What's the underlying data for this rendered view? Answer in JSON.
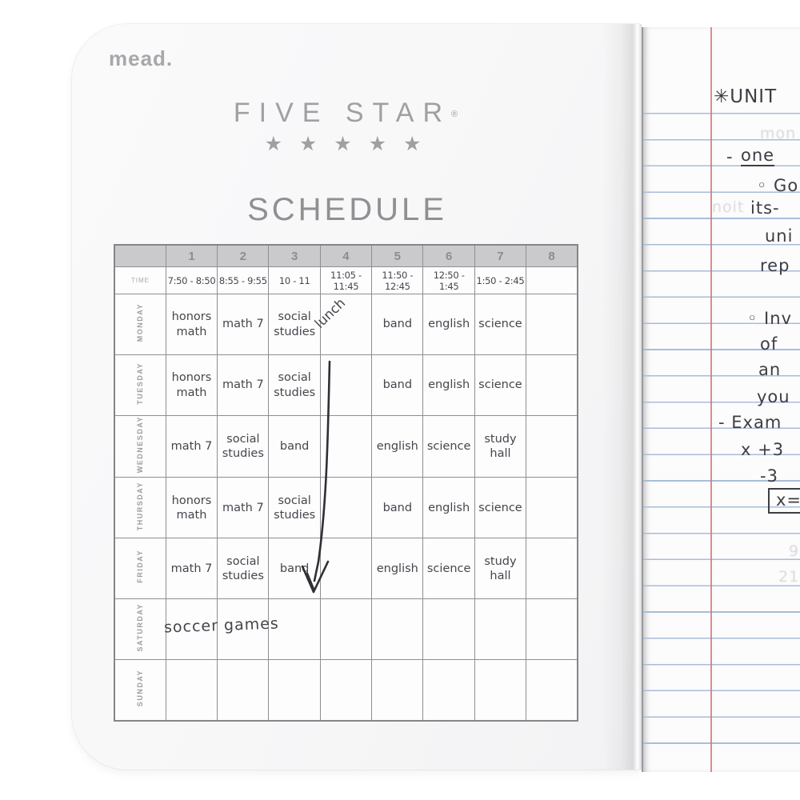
{
  "cover": {
    "brand": "mead.",
    "product": "FIVE STAR",
    "reg_mark": "®",
    "stars": "★ ★ ★ ★ ★",
    "title": "SCHEDULE"
  },
  "schedule_table": {
    "period_headers": [
      "1",
      "2",
      "3",
      "4",
      "5",
      "6",
      "7",
      "8"
    ],
    "time_label": "TIME",
    "times": [
      "7:50 - 8:50",
      "8:55 - 9:55",
      "10 - 11",
      "11:05 - 11:45",
      "11:50 - 12:45",
      "12:50 - 1:45",
      "1:50 - 2:45",
      ""
    ],
    "rows": [
      {
        "day": "MONDAY",
        "cells": [
          "honors math",
          "math 7",
          "social studies",
          "",
          "band",
          "english",
          "science",
          ""
        ]
      },
      {
        "day": "TUESDAY",
        "cells": [
          "honors math",
          "math 7",
          "social studies",
          "",
          "band",
          "english",
          "science",
          ""
        ]
      },
      {
        "day": "WEDNESDAY",
        "cells": [
          "math 7",
          "social studies",
          "band",
          "",
          "english",
          "science",
          "study hall",
          ""
        ]
      },
      {
        "day": "THURSDAY",
        "cells": [
          "honors math",
          "math 7",
          "social studies",
          "",
          "band",
          "english",
          "science",
          ""
        ]
      },
      {
        "day": "FRIDAY",
        "cells": [
          "math 7",
          "social studies",
          "band",
          "",
          "english",
          "science",
          "study hall",
          ""
        ]
      },
      {
        "day": "SATURDAY",
        "cells": [
          "",
          "",
          "",
          "",
          "",
          "",
          "",
          ""
        ]
      },
      {
        "day": "SUNDAY",
        "cells": [
          "",
          "",
          "",
          "",
          "",
          "",
          "",
          ""
        ]
      }
    ],
    "lunch_label": "lunch",
    "saturday_note": "soccer games",
    "annotation": "hand-drawn arrow down column 4 from Tuesday to Friday"
  },
  "notes_page": {
    "fragments": [
      {
        "text": "✳UNIT"
      },
      {
        "text": "-"
      },
      {
        "text": "one"
      },
      {
        "text": "◦ Go"
      },
      {
        "text": "its-"
      },
      {
        "text": "uni"
      },
      {
        "text": "rep"
      },
      {
        "text": "◦ Inv"
      },
      {
        "text": "of"
      },
      {
        "text": "an"
      },
      {
        "text": "you"
      },
      {
        "text": "- Exam"
      },
      {
        "text": "x +3"
      },
      {
        "text": "-3"
      },
      {
        "text": "x="
      }
    ],
    "ghost_fragments": [
      {
        "text": "mon"
      },
      {
        "text": "noit"
      },
      {
        "text": "9"
      },
      {
        "text": "21"
      }
    ]
  },
  "colors": {
    "cover_gray": "#f7f7f8",
    "paper_white": "#fcfcfd",
    "rule_blue": "#a8bdd8",
    "margin_red": "#d57878",
    "print_gray": "#9ea0a3",
    "table_header_fill": "#cacacc",
    "table_border": "#8f8f93",
    "ink": "#3d3d44"
  }
}
